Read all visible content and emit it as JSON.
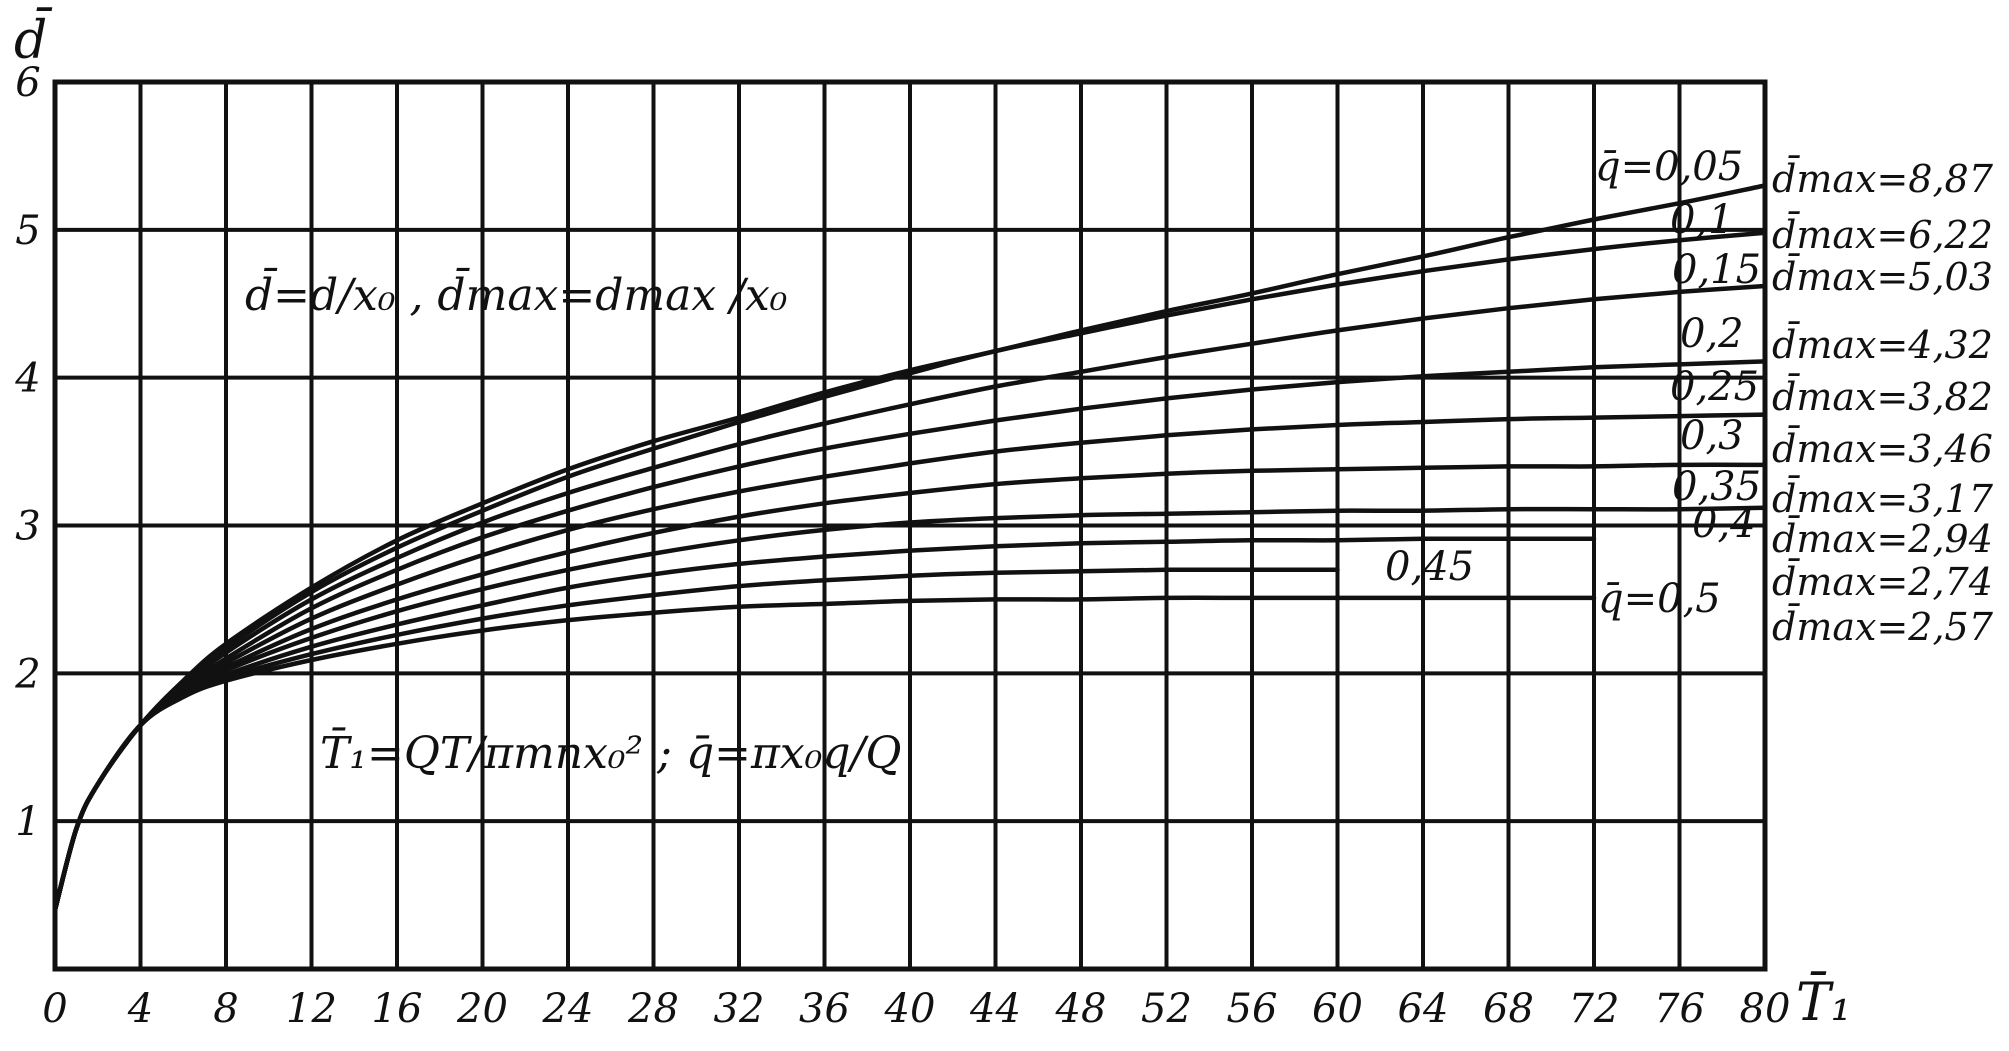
{
  "chart_data": {
    "type": "line",
    "title": "",
    "xlabel": "T̄₁",
    "ylabel": "d̄",
    "xlim": [
      0,
      80
    ],
    "ylim": [
      0,
      6
    ],
    "x_ticks": [
      0,
      4,
      8,
      12,
      16,
      20,
      24,
      28,
      32,
      36,
      40,
      44,
      48,
      52,
      56,
      60,
      64,
      68,
      72,
      76,
      80
    ],
    "x_tick_labels": [
      "0",
      "4",
      "8",
      "12",
      "16",
      "20",
      "24",
      "28",
      "32",
      "36",
      "40",
      "44",
      "48",
      "52",
      "56",
      "60",
      "64",
      "68",
      "72",
      "76",
      "80"
    ],
    "y_ticks": [
      1,
      2,
      3,
      4,
      5,
      6
    ],
    "y_tick_labels": [
      "1",
      "2",
      "3",
      "4",
      "5",
      "6"
    ],
    "grid": true,
    "annotations": [
      "d̄=d/x₀ , d̄max=dmax /x₀",
      "T̄₁=QT/πmnx₀² ; q̄=πx₀q/Q"
    ],
    "series": [
      {
        "name": "q̄=0,05",
        "dmax": "d̄max=8,87",
        "x": [
          0,
          1,
          2,
          4,
          6,
          8,
          12,
          16,
          20,
          24,
          28,
          32,
          36,
          40,
          44,
          48,
          52,
          56,
          60,
          64,
          68,
          72,
          76,
          80
        ],
        "y": [
          0.4,
          0.95,
          1.25,
          1.65,
          1.95,
          2.2,
          2.58,
          2.9,
          3.15,
          3.38,
          3.57,
          3.73,
          3.9,
          4.05,
          4.18,
          4.32,
          4.45,
          4.57,
          4.7,
          4.82,
          4.95,
          5.07,
          5.18,
          5.3
        ]
      },
      {
        "name": "0,1",
        "dmax": "d̄max=6,22",
        "x": [
          0,
          1,
          2,
          4,
          6,
          8,
          12,
          16,
          20,
          24,
          28,
          32,
          36,
          40,
          44,
          48,
          52,
          56,
          60,
          64,
          68,
          72,
          76,
          80
        ],
        "y": [
          0.4,
          0.95,
          1.25,
          1.65,
          1.93,
          2.17,
          2.55,
          2.85,
          3.1,
          3.33,
          3.52,
          3.7,
          3.87,
          4.03,
          4.18,
          4.3,
          4.42,
          4.53,
          4.63,
          4.72,
          4.8,
          4.87,
          4.93,
          4.98
        ]
      },
      {
        "name": "0,15",
        "dmax": "d̄max=5,03",
        "x": [
          0,
          1,
          2,
          4,
          6,
          8,
          12,
          16,
          20,
          24,
          28,
          32,
          36,
          40,
          44,
          48,
          52,
          56,
          60,
          64,
          68,
          72,
          76,
          80
        ],
        "y": [
          0.4,
          0.95,
          1.25,
          1.65,
          1.92,
          2.14,
          2.5,
          2.78,
          3.02,
          3.22,
          3.39,
          3.55,
          3.69,
          3.82,
          3.94,
          4.04,
          4.14,
          4.23,
          4.32,
          4.4,
          4.47,
          4.53,
          4.58,
          4.62
        ]
      },
      {
        "name": "0,2",
        "dmax": "d̄max=4,32",
        "x": [
          0,
          1,
          2,
          4,
          6,
          8,
          12,
          16,
          20,
          24,
          28,
          32,
          36,
          40,
          44,
          48,
          52,
          56,
          60,
          64,
          68,
          72,
          76,
          80
        ],
        "y": [
          0.4,
          0.95,
          1.25,
          1.65,
          1.9,
          2.1,
          2.44,
          2.7,
          2.92,
          3.1,
          3.26,
          3.4,
          3.52,
          3.62,
          3.71,
          3.79,
          3.86,
          3.92,
          3.97,
          4.01,
          4.04,
          4.07,
          4.09,
          4.11
        ]
      },
      {
        "name": "0,25",
        "dmax": "d̄max=3,82",
        "x": [
          0,
          1,
          2,
          4,
          6,
          8,
          12,
          16,
          20,
          24,
          28,
          32,
          36,
          40,
          44,
          48,
          52,
          56,
          60,
          64,
          68,
          72,
          76,
          80
        ],
        "y": [
          0.4,
          0.95,
          1.25,
          1.65,
          1.89,
          2.07,
          2.37,
          2.6,
          2.8,
          2.97,
          3.11,
          3.23,
          3.33,
          3.42,
          3.5,
          3.56,
          3.61,
          3.65,
          3.68,
          3.7,
          3.72,
          3.73,
          3.74,
          3.75
        ]
      },
      {
        "name": "0,3",
        "dmax": "d̄max=3,46",
        "x": [
          0,
          1,
          2,
          4,
          6,
          8,
          12,
          16,
          20,
          24,
          28,
          32,
          36,
          40,
          44,
          48,
          52,
          56,
          60,
          64,
          68,
          72,
          76,
          80
        ],
        "y": [
          0.4,
          0.95,
          1.25,
          1.65,
          1.88,
          2.04,
          2.3,
          2.5,
          2.67,
          2.82,
          2.95,
          3.06,
          3.15,
          3.22,
          3.28,
          3.32,
          3.35,
          3.37,
          3.38,
          3.39,
          3.4,
          3.4,
          3.41,
          3.41
        ]
      },
      {
        "name": "0,35",
        "dmax": "d̄max=3,17",
        "x": [
          0,
          1,
          2,
          4,
          6,
          8,
          12,
          16,
          20,
          24,
          28,
          32,
          36,
          40,
          44,
          48,
          52,
          56,
          60,
          64,
          68,
          72,
          76,
          80
        ],
        "y": [
          0.4,
          0.95,
          1.25,
          1.65,
          1.87,
          2.02,
          2.24,
          2.42,
          2.57,
          2.7,
          2.81,
          2.9,
          2.97,
          3.02,
          3.05,
          3.07,
          3.08,
          3.09,
          3.1,
          3.1,
          3.11,
          3.11,
          3.11,
          3.12
        ]
      },
      {
        "name": "0,4",
        "dmax": "d̄max=2,94",
        "x": [
          0,
          1,
          2,
          4,
          6,
          8,
          12,
          16,
          20,
          24,
          28,
          32,
          36,
          40,
          44,
          48,
          52,
          56,
          60,
          64,
          68,
          72
        ],
        "y": [
          0.4,
          0.95,
          1.25,
          1.65,
          1.86,
          1.99,
          2.18,
          2.33,
          2.46,
          2.58,
          2.67,
          2.74,
          2.79,
          2.83,
          2.86,
          2.88,
          2.89,
          2.9,
          2.9,
          2.91,
          2.91,
          2.91
        ]
      },
      {
        "name": "0,45",
        "dmax": "d̄max=2,74",
        "x": [
          0,
          1,
          2,
          4,
          6,
          8,
          12,
          16,
          20,
          24,
          28,
          32,
          36,
          40,
          44,
          48,
          52,
          56,
          60
        ],
        "y": [
          0.4,
          0.95,
          1.25,
          1.65,
          1.85,
          1.97,
          2.13,
          2.26,
          2.37,
          2.46,
          2.53,
          2.59,
          2.63,
          2.66,
          2.68,
          2.69,
          2.7,
          2.7,
          2.7
        ]
      },
      {
        "name": "q̄=0,5",
        "dmax": "d̄max=2,57",
        "x": [
          0,
          1,
          2,
          4,
          6,
          8,
          12,
          16,
          20,
          24,
          28,
          32,
          36,
          40,
          44,
          48,
          52,
          56,
          60,
          64,
          68,
          72
        ],
        "y": [
          0.4,
          0.95,
          1.25,
          1.65,
          1.84,
          1.95,
          2.09,
          2.2,
          2.29,
          2.36,
          2.41,
          2.45,
          2.47,
          2.49,
          2.5,
          2.5,
          2.51,
          2.51,
          2.51,
          2.51,
          2.51,
          2.51
        ]
      }
    ]
  }
}
